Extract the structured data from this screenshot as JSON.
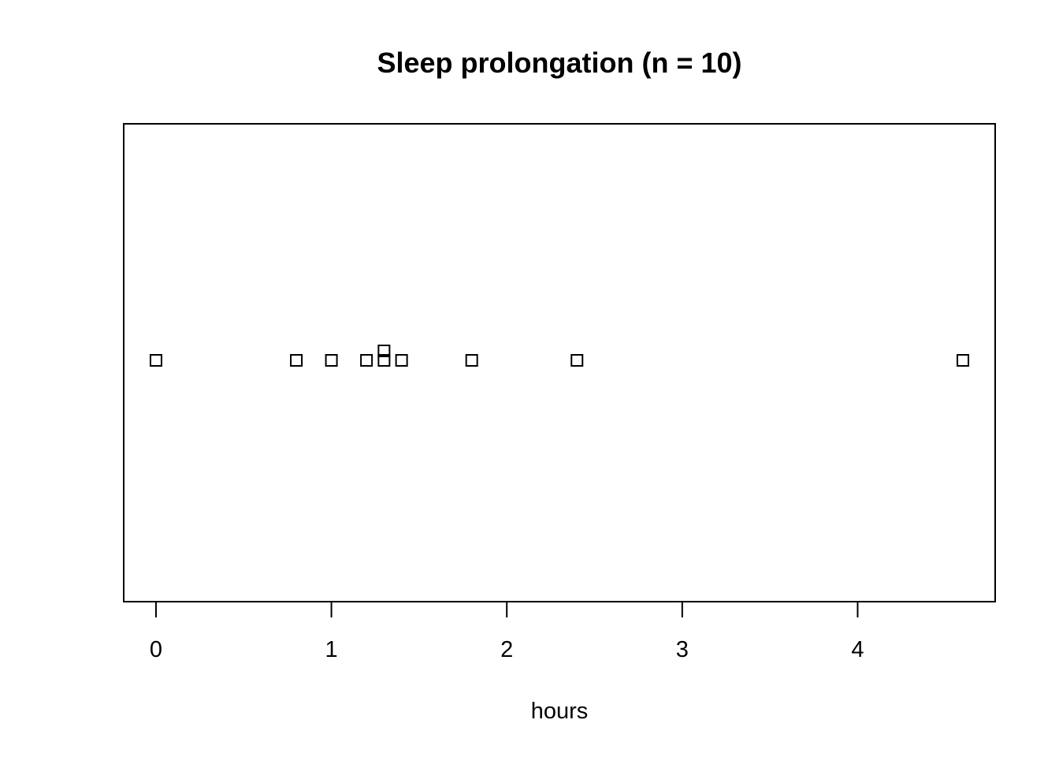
{
  "chart_data": {
    "type": "scatter",
    "title": "Sleep prolongation (n = 10)",
    "xlabel": "hours",
    "ylabel": "",
    "xlim": [
      -0.184,
      4.784
    ],
    "x_ticks": [
      0,
      1,
      2,
      3,
      4
    ],
    "x_tick_labels": [
      "0",
      "1",
      "2",
      "3",
      "4"
    ],
    "values": [
      0.0,
      0.8,
      1.0,
      1.2,
      1.3,
      1.3,
      1.4,
      1.8,
      2.4,
      4.6
    ],
    "method": "stack",
    "marker": "open-square",
    "grid": false,
    "legend": "none"
  }
}
